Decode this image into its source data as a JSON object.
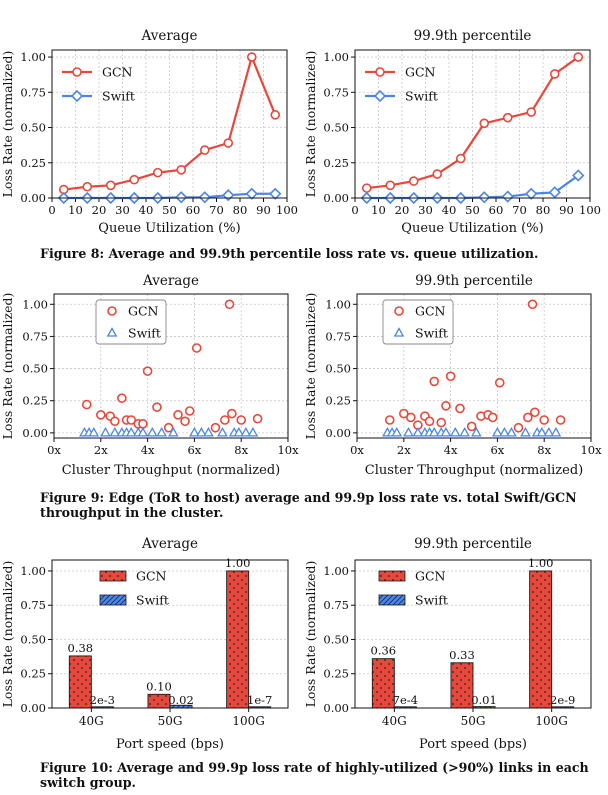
{
  "colors": {
    "gcn": "#e8473b",
    "swift": "#4a86e8",
    "grid": "#c8c8c8"
  },
  "captions": {
    "fig8": "Figure 8: Average and 99.9th percentile loss rate vs. queue utilization.",
    "fig9": "Figure 9: Edge (ToR to host) average and 99.9p loss rate vs. total Swift/GCN throughput in the cluster.",
    "fig10": "Figure 10: Average and 99.9p loss rate of highly-utilized (>90%) links in each switch group."
  },
  "chart_data": [
    {
      "id": "fig8-average",
      "type": "line",
      "title": "Average",
      "xlabel": "Queue Utilization (%)",
      "ylabel": "Loss Rate (normalized)",
      "xlim": [
        0,
        100
      ],
      "ylim": [
        0,
        1.05
      ],
      "xticks": [
        0,
        10,
        20,
        30,
        40,
        50,
        60,
        70,
        80,
        90,
        100
      ],
      "yticks": [
        0.0,
        0.25,
        0.5,
        0.75,
        1.0
      ],
      "ytick_labels": [
        "0.00",
        "0.25",
        "0.50",
        "0.75",
        "1.00"
      ],
      "legend_position": "top-left",
      "grid": true,
      "x": [
        5,
        15,
        25,
        35,
        45,
        55,
        65,
        75,
        85,
        95
      ],
      "series": [
        {
          "name": "GCN",
          "marker": "circle",
          "values": [
            0.06,
            0.08,
            0.09,
            0.13,
            0.18,
            0.2,
            0.34,
            0.39,
            1.0,
            0.59
          ]
        },
        {
          "name": "Swift",
          "marker": "diamond",
          "values": [
            0.0,
            0.0,
            0.0,
            0.0,
            0.0,
            0.005,
            0.005,
            0.02,
            0.03,
            0.03
          ]
        }
      ]
    },
    {
      "id": "fig8-p999",
      "type": "line",
      "title": "99.9th percentile",
      "xlabel": "Queue Utilization (%)",
      "ylabel": "Loss Rate (normalized)",
      "xlim": [
        0,
        100
      ],
      "ylim": [
        0,
        1.05
      ],
      "xticks": [
        0,
        10,
        20,
        30,
        40,
        50,
        60,
        70,
        80,
        90,
        100
      ],
      "yticks": [
        0.0,
        0.25,
        0.5,
        0.75,
        1.0
      ],
      "ytick_labels": [
        "0.00",
        "0.25",
        "0.50",
        "0.75",
        "1.00"
      ],
      "legend_position": "top-left",
      "grid": true,
      "x": [
        5,
        15,
        25,
        35,
        45,
        55,
        65,
        75,
        85,
        95
      ],
      "series": [
        {
          "name": "GCN",
          "marker": "circle",
          "values": [
            0.07,
            0.09,
            0.12,
            0.17,
            0.28,
            0.53,
            0.57,
            0.61,
            0.88,
            1.0
          ]
        },
        {
          "name": "Swift",
          "marker": "diamond",
          "values": [
            0.0,
            0.0,
            0.0,
            0.0,
            0.0,
            0.005,
            0.01,
            0.03,
            0.04,
            0.16
          ]
        }
      ]
    },
    {
      "id": "fig9-average",
      "type": "scatter",
      "title": "Average",
      "xlabel": "Cluster Throughput (normalized)",
      "ylabel": "Loss Rate (normalized)",
      "xlim": [
        0,
        10
      ],
      "ylim": [
        -0.04,
        1.08
      ],
      "xticks": [
        0,
        2,
        4,
        6,
        8,
        10
      ],
      "xtick_labels": [
        "0x",
        "2x",
        "4x",
        "6x",
        "8x",
        "10x"
      ],
      "yticks": [
        0.0,
        0.25,
        0.5,
        0.75,
        1.0
      ],
      "ytick_labels": [
        "0.00",
        "0.25",
        "0.50",
        "0.75",
        "1.00"
      ],
      "legend_position": "top-left",
      "grid": true,
      "series": [
        {
          "name": "GCN",
          "marker": "circle",
          "x": [
            1.4,
            2.0,
            2.4,
            2.6,
            2.9,
            3.1,
            3.3,
            3.6,
            3.8,
            4.0,
            4.4,
            4.9,
            5.3,
            5.6,
            5.8,
            6.1,
            6.9,
            7.3,
            7.5,
            7.6,
            8.0,
            8.7
          ],
          "y": [
            0.22,
            0.14,
            0.13,
            0.09,
            0.27,
            0.1,
            0.1,
            0.07,
            0.07,
            0.48,
            0.2,
            0.04,
            0.14,
            0.09,
            0.17,
            0.66,
            0.04,
            0.1,
            1.0,
            0.15,
            0.1,
            0.11
          ]
        },
        {
          "name": "Swift",
          "marker": "triangle",
          "x": [
            1.3,
            1.5,
            1.7,
            2.2,
            2.6,
            2.9,
            3.1,
            3.3,
            3.6,
            3.8,
            4.2,
            4.6,
            5.1,
            6.0,
            6.3,
            6.6,
            7.2,
            7.7,
            7.9,
            8.2,
            8.5
          ],
          "y": [
            0.0,
            0.0,
            0.0,
            0.0,
            0.0,
            0.0,
            0.0,
            0.0,
            0.0,
            0.0,
            0.0,
            0.0,
            0.0,
            0.0,
            0.0,
            0.0,
            0.0,
            0.0,
            0.0,
            0.0,
            0.0
          ]
        }
      ]
    },
    {
      "id": "fig9-p999",
      "type": "scatter",
      "title": "99.9th percentile",
      "xlabel": "Cluster Throughput (normalized)",
      "ylabel": "Loss Rate (normalized)",
      "xlim": [
        0,
        10
      ],
      "ylim": [
        -0.04,
        1.08
      ],
      "xticks": [
        0,
        2,
        4,
        6,
        8,
        10
      ],
      "xtick_labels": [
        "0x",
        "2x",
        "4x",
        "6x",
        "8x",
        "10x"
      ],
      "yticks": [
        0.0,
        0.25,
        0.5,
        0.75,
        1.0
      ],
      "ytick_labels": [
        "0.00",
        "0.25",
        "0.50",
        "0.75",
        "1.00"
      ],
      "legend_position": "top-left",
      "grid": true,
      "series": [
        {
          "name": "GCN",
          "marker": "circle",
          "x": [
            1.4,
            2.0,
            2.3,
            2.6,
            2.9,
            3.1,
            3.3,
            3.6,
            3.8,
            4.0,
            4.4,
            4.9,
            5.3,
            5.6,
            5.8,
            6.1,
            6.9,
            7.3,
            7.5,
            7.6,
            8.0,
            8.7
          ],
          "y": [
            0.1,
            0.15,
            0.12,
            0.06,
            0.13,
            0.09,
            0.4,
            0.08,
            0.21,
            0.44,
            0.19,
            0.05,
            0.13,
            0.14,
            0.12,
            0.39,
            0.04,
            0.12,
            1.0,
            0.16,
            0.1,
            0.1
          ]
        },
        {
          "name": "Swift",
          "marker": "triangle",
          "x": [
            1.3,
            1.5,
            1.7,
            2.2,
            2.6,
            2.9,
            3.1,
            3.3,
            3.6,
            3.8,
            4.2,
            4.6,
            5.1,
            6.0,
            6.3,
            6.6,
            7.2,
            7.7,
            7.9,
            8.2,
            8.5
          ],
          "y": [
            0.0,
            0.0,
            0.0,
            0.0,
            0.0,
            0.0,
            0.0,
            0.0,
            0.0,
            0.0,
            0.0,
            0.0,
            0.0,
            0.0,
            0.0,
            0.0,
            0.0,
            0.0,
            0.0,
            0.0,
            0.0
          ]
        }
      ]
    },
    {
      "id": "fig10-average",
      "type": "bar",
      "title": "Average",
      "xlabel": "Port speed (bps)",
      "ylabel": "Loss Rate (normalized)",
      "ylim": [
        0,
        1.08
      ],
      "yticks": [
        0.0,
        0.25,
        0.5,
        0.75,
        1.0
      ],
      "ytick_labels": [
        "0.00",
        "0.25",
        "0.50",
        "0.75",
        "1.00"
      ],
      "legend_position": "top-left",
      "grid": true,
      "categories": [
        "40G",
        "50G",
        "100G"
      ],
      "series": [
        {
          "name": "GCN",
          "pattern": "dots",
          "values": [
            0.38,
            0.1,
            1.0
          ],
          "labels": [
            "0.38",
            "0.10",
            "1.00"
          ]
        },
        {
          "name": "Swift",
          "pattern": "hatch",
          "values": [
            0.002,
            0.02,
            1e-07
          ],
          "labels": [
            "2e-3",
            "0.02",
            "1e-7"
          ]
        }
      ]
    },
    {
      "id": "fig10-p999",
      "type": "bar",
      "title": "99.9th percentile",
      "xlabel": "Port speed (bps)",
      "ylabel": "Loss Rate (normalized)",
      "ylim": [
        0,
        1.08
      ],
      "yticks": [
        0.0,
        0.25,
        0.5,
        0.75,
        1.0
      ],
      "ytick_labels": [
        "0.00",
        "0.25",
        "0.50",
        "0.75",
        "1.00"
      ],
      "legend_position": "top-left",
      "grid": true,
      "categories": [
        "40G",
        "50G",
        "100G"
      ],
      "series": [
        {
          "name": "GCN",
          "pattern": "dots",
          "values": [
            0.36,
            0.33,
            1.0
          ],
          "labels": [
            "0.36",
            "0.33",
            "1.00"
          ]
        },
        {
          "name": "Swift",
          "pattern": "hatch",
          "values": [
            0.0007,
            0.01,
            2e-09
          ],
          "labels": [
            "7e-4",
            "0.01",
            "2e-9"
          ]
        }
      ]
    }
  ]
}
